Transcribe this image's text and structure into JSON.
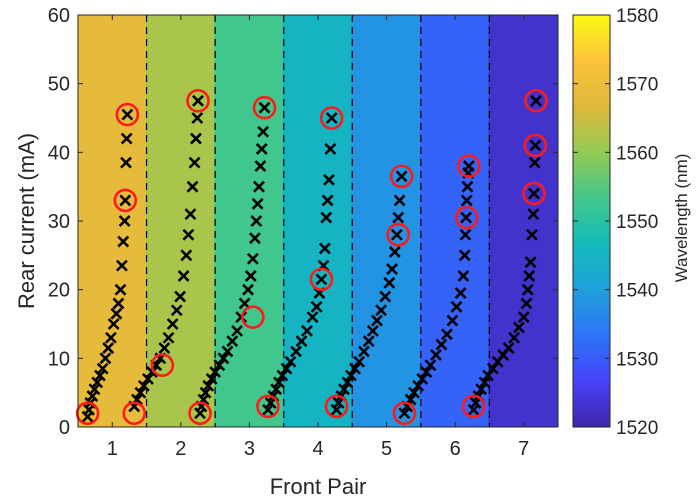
{
  "chart_data": {
    "type": "heatmap",
    "xlabel": "Front Pair",
    "ylabel": "Rear current (mA)",
    "colorbar_label": "Wavelength (nm)",
    "xlim": [
      0.5,
      7.5
    ],
    "ylim": [
      0,
      60
    ],
    "clim": [
      1520,
      1580
    ],
    "x_ticks": [
      1,
      2,
      3,
      4,
      5,
      6,
      7
    ],
    "y_ticks": [
      0,
      10,
      20,
      30,
      40,
      50,
      60
    ],
    "colorbar_ticks": [
      1520,
      1530,
      1540,
      1550,
      1560,
      1570,
      1580
    ],
    "colormap": [
      "#3e26a8",
      "#4743f8",
      "#2c74f8",
      "#1fa0db",
      "#13bbbb",
      "#43c78b",
      "#93ca53",
      "#e0b93b",
      "#fcc23a",
      "#f9fb15"
    ],
    "boundaries": [
      1.5,
      2.5,
      3.5,
      4.5,
      5.5,
      6.5
    ],
    "boundary_style": "dashed",
    "regions": [
      {
        "front_pair": 1,
        "wavelength": 1568
      },
      {
        "front_pair": 2,
        "wavelength": 1562
      },
      {
        "front_pair": 3,
        "wavelength": 1553
      },
      {
        "front_pair": 4,
        "wavelength": 1545
      },
      {
        "front_pair": 5,
        "wavelength": 1538
      },
      {
        "front_pair": 6,
        "wavelength": 1531
      },
      {
        "front_pair": 7,
        "wavelength": 1523
      }
    ],
    "series": [
      {
        "marker": "x",
        "color": "#000000",
        "groups": [
          [
            [
              0.64,
              1.5
            ],
            [
              0.66,
              2.5
            ],
            [
              0.68,
              3.5
            ],
            [
              0.71,
              4.5
            ],
            [
              0.74,
              5.5
            ],
            [
              0.78,
              6.5
            ],
            [
              0.82,
              7.5
            ],
            [
              0.86,
              8.5
            ],
            [
              0.9,
              10
            ],
            [
              0.94,
              11.5
            ],
            [
              0.98,
              13
            ],
            [
              1.02,
              15
            ],
            [
              1.06,
              16.5
            ],
            [
              1.09,
              18
            ],
            [
              1.12,
              20
            ],
            [
              1.14,
              23.5
            ],
            [
              1.16,
              27
            ],
            [
              1.18,
              30
            ],
            [
              1.19,
              33
            ],
            [
              1.2,
              38.5
            ],
            [
              1.21,
              42
            ],
            [
              1.22,
              45.5
            ]
          ],
          [
            [
              1.32,
              3
            ],
            [
              1.36,
              4
            ],
            [
              1.41,
              5
            ],
            [
              1.46,
              6
            ],
            [
              1.52,
              7
            ],
            [
              1.58,
              8
            ],
            [
              1.64,
              9
            ],
            [
              1.7,
              10
            ],
            [
              1.76,
              11.5
            ],
            [
              1.82,
              13
            ],
            [
              1.88,
              15
            ],
            [
              1.94,
              17
            ],
            [
              1.99,
              19
            ],
            [
              2.04,
              22
            ],
            [
              2.08,
              25
            ],
            [
              2.11,
              28
            ],
            [
              2.14,
              31
            ],
            [
              2.17,
              35
            ],
            [
              2.2,
              38.5
            ],
            [
              2.22,
              42
            ],
            [
              2.24,
              45
            ],
            [
              2.25,
              47.5
            ]
          ],
          [
            [
              2.28,
              2
            ],
            [
              2.3,
              3
            ],
            [
              2.33,
              4
            ],
            [
              2.36,
              5
            ],
            [
              2.4,
              6
            ],
            [
              2.45,
              7
            ],
            [
              2.5,
              8
            ],
            [
              2.56,
              9
            ],
            [
              2.62,
              10
            ],
            [
              2.68,
              11
            ],
            [
              2.75,
              12.5
            ],
            [
              2.82,
              14
            ],
            [
              2.88,
              16
            ],
            [
              2.93,
              18
            ],
            [
              2.98,
              20
            ],
            [
              3.02,
              22
            ],
            [
              3.05,
              24.5
            ],
            [
              3.08,
              27.5
            ],
            [
              3.1,
              30
            ],
            [
              3.12,
              32.5
            ],
            [
              3.14,
              35
            ],
            [
              3.16,
              38
            ],
            [
              3.18,
              40.5
            ],
            [
              3.2,
              43
            ],
            [
              3.22,
              46.5
            ]
          ],
          [
            [
              3.27,
              2.5
            ],
            [
              3.31,
              3.5
            ],
            [
              3.35,
              4.5
            ],
            [
              3.39,
              5.5
            ],
            [
              3.43,
              6.5
            ],
            [
              3.48,
              7.5
            ],
            [
              3.54,
              8.5
            ],
            [
              3.6,
              9.5
            ],
            [
              3.68,
              11
            ],
            [
              3.76,
              12.5
            ],
            [
              3.84,
              14
            ],
            [
              3.92,
              16
            ],
            [
              3.98,
              17.5
            ],
            [
              4.02,
              19.5
            ],
            [
              4.05,
              21.5
            ],
            [
              4.08,
              23.5
            ],
            [
              4.1,
              26
            ],
            [
              4.12,
              30.5
            ],
            [
              4.14,
              33
            ],
            [
              4.16,
              36
            ],
            [
              4.18,
              40.5
            ],
            [
              4.2,
              45
            ]
          ],
          [
            [
              4.27,
              2.5
            ],
            [
              4.3,
              3.5
            ],
            [
              4.34,
              4.5
            ],
            [
              4.38,
              5.5
            ],
            [
              4.43,
              6.5
            ],
            [
              4.48,
              7.5
            ],
            [
              4.54,
              8.5
            ],
            [
              4.6,
              9.5
            ],
            [
              4.67,
              11
            ],
            [
              4.74,
              12.5
            ],
            [
              4.8,
              14
            ],
            [
              4.86,
              15.5
            ],
            [
              4.92,
              17
            ],
            [
              4.98,
              19
            ],
            [
              5.04,
              21
            ],
            [
              5.08,
              23
            ],
            [
              5.12,
              25.5
            ],
            [
              5.15,
              28
            ],
            [
              5.17,
              30.5
            ],
            [
              5.19,
              33
            ],
            [
              5.22,
              36.5
            ]
          ],
          [
            [
              5.26,
              2
            ],
            [
              5.3,
              3
            ],
            [
              5.35,
              4
            ],
            [
              5.4,
              5
            ],
            [
              5.46,
              6
            ],
            [
              5.52,
              7
            ],
            [
              5.58,
              8
            ],
            [
              5.64,
              9
            ],
            [
              5.72,
              10.5
            ],
            [
              5.8,
              12
            ],
            [
              5.88,
              13.5
            ],
            [
              5.96,
              15.5
            ],
            [
              6.02,
              17.5
            ],
            [
              6.08,
              19.5
            ],
            [
              6.12,
              22
            ],
            [
              6.14,
              25
            ],
            [
              6.15,
              28
            ],
            [
              6.16,
              30.5
            ],
            [
              6.17,
              33
            ],
            [
              6.18,
              35
            ],
            [
              6.19,
              37
            ],
            [
              6.2,
              38
            ]
          ],
          [
            [
              6.27,
              2.5
            ],
            [
              6.3,
              3.5
            ],
            [
              6.34,
              4.5
            ],
            [
              6.38,
              5.5
            ],
            [
              6.43,
              6.5
            ],
            [
              6.48,
              7.5
            ],
            [
              6.55,
              8.5
            ],
            [
              6.62,
              9.5
            ],
            [
              6.7,
              10.5
            ],
            [
              6.78,
              11.5
            ],
            [
              6.86,
              13
            ],
            [
              6.93,
              14.5
            ],
            [
              7.0,
              16
            ],
            [
              7.04,
              18
            ],
            [
              7.06,
              20
            ],
            [
              7.08,
              22
            ],
            [
              7.1,
              24
            ],
            [
              7.12,
              28
            ],
            [
              7.14,
              31
            ],
            [
              7.15,
              34
            ],
            [
              7.16,
              38.5
            ],
            [
              7.17,
              41
            ],
            [
              7.18,
              47.5
            ]
          ]
        ]
      },
      {
        "marker": "circle",
        "color": "#ff1a1a",
        "points": [
          [
            0.64,
            2
          ],
          [
            1.22,
            45.5
          ],
          [
            1.19,
            33
          ],
          [
            1.32,
            2
          ],
          [
            1.73,
            9
          ],
          [
            2.25,
            47.5
          ],
          [
            2.28,
            2
          ],
          [
            3.22,
            46.5
          ],
          [
            3.05,
            16
          ],
          [
            3.27,
            3
          ],
          [
            4.2,
            45
          ],
          [
            4.05,
            21.5
          ],
          [
            4.27,
            3
          ],
          [
            5.22,
            36.5
          ],
          [
            5.17,
            28
          ],
          [
            5.26,
            2
          ],
          [
            6.2,
            38
          ],
          [
            6.17,
            30.5
          ],
          [
            6.27,
            3
          ],
          [
            7.18,
            47.5
          ],
          [
            7.17,
            41
          ],
          [
            7.15,
            34
          ]
        ]
      }
    ]
  }
}
